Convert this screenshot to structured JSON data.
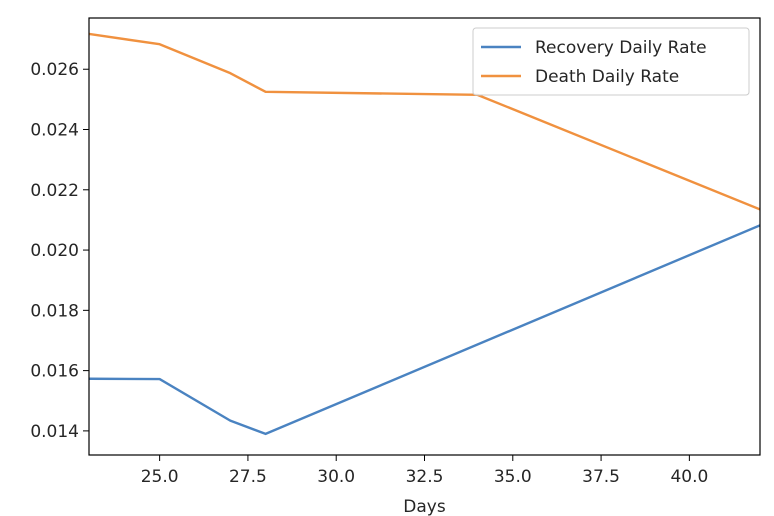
{
  "chart_data": {
    "type": "line",
    "title": "",
    "xlabel": "Days",
    "ylabel": "",
    "xlim": [
      23,
      42
    ],
    "ylim": [
      0.0132,
      0.0277
    ],
    "xticks": [
      25.0,
      27.5,
      30.0,
      32.5,
      35.0,
      37.5,
      40.0
    ],
    "xtick_labels": [
      "25.0",
      "27.5",
      "30.0",
      "32.5",
      "35.0",
      "37.5",
      "40.0"
    ],
    "yticks": [
      0.014,
      0.016,
      0.018,
      0.02,
      0.022,
      0.024,
      0.026
    ],
    "ytick_labels": [
      "0.014",
      "0.016",
      "0.018",
      "0.020",
      "0.022",
      "0.024",
      "0.026"
    ],
    "grid": false,
    "legend_position": "top-right",
    "series": [
      {
        "name": "Recovery Daily Rate",
        "color": "#4a83c1",
        "x": [
          23,
          25,
          27,
          28,
          42
        ],
        "y": [
          0.01573,
          0.01572,
          0.01434,
          0.0139,
          0.02082
        ]
      },
      {
        "name": "Death Daily Rate",
        "color": "#f0913f",
        "x": [
          23,
          25,
          27,
          28,
          34,
          42
        ],
        "y": [
          0.02717,
          0.02683,
          0.02587,
          0.02525,
          0.02515,
          0.02135
        ]
      }
    ]
  }
}
